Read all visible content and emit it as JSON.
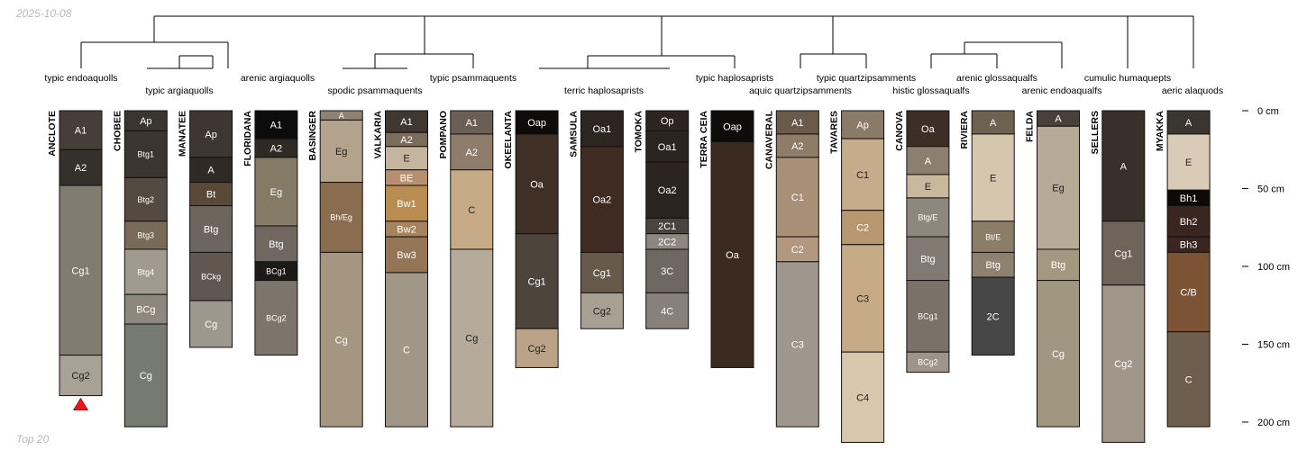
{
  "meta": {
    "date": "2025-10-08",
    "footer": "Top 20"
  },
  "depth_axis": {
    "unit": "cm",
    "ticks": [
      0,
      50,
      100,
      150,
      200
    ],
    "labels": [
      "0 cm",
      "50 cm",
      "100 cm",
      "150 cm",
      "200 cm"
    ]
  },
  "profiles": [
    {
      "name": "ANCLOTE",
      "horizons": [
        {
          "name": "A1",
          "top": 0,
          "bottom": 25,
          "color": "#463e37"
        },
        {
          "name": "A2",
          "top": 25,
          "bottom": 48,
          "color": "#34302b"
        },
        {
          "name": "Cg1",
          "top": 48,
          "bottom": 157,
          "color": "#807c70"
        },
        {
          "name": "Cg2",
          "top": 157,
          "bottom": 183,
          "color": "#a8a196"
        }
      ],
      "truncated": true
    },
    {
      "name": "CHOBEE",
      "horizons": [
        {
          "name": "Ap",
          "top": 0,
          "bottom": 13,
          "color": "#3b3530"
        },
        {
          "name": "Btg1",
          "top": 13,
          "bottom": 43,
          "color": "#3b3530"
        },
        {
          "name": "Btg2",
          "top": 43,
          "bottom": 71,
          "color": "#534a42"
        },
        {
          "name": "Btg3",
          "top": 71,
          "bottom": 89,
          "color": "#7a6a58"
        },
        {
          "name": "Btg4",
          "top": 89,
          "bottom": 118,
          "color": "#a19b8f"
        },
        {
          "name": "BCg",
          "top": 118,
          "bottom": 137,
          "color": "#8d877e"
        },
        {
          "name": "Cg",
          "top": 137,
          "bottom": 203,
          "color": "#777a6f"
        }
      ]
    },
    {
      "name": "MANATEE",
      "horizons": [
        {
          "name": "Ap",
          "top": 0,
          "bottom": 30,
          "color": "#3e3631"
        },
        {
          "name": "A",
          "top": 30,
          "bottom": 46,
          "color": "#2f2a26"
        },
        {
          "name": "Bt",
          "top": 46,
          "bottom": 61,
          "color": "#5a4838"
        },
        {
          "name": "Btg",
          "top": 61,
          "bottom": 91,
          "color": "#6c655d"
        },
        {
          "name": "BCkg",
          "top": 91,
          "bottom": 122,
          "color": "#605750"
        },
        {
          "name": "Cg",
          "top": 122,
          "bottom": 152,
          "color": "#9d988d"
        }
      ]
    },
    {
      "name": "FLORIDANA",
      "horizons": [
        {
          "name": "A1",
          "top": 0,
          "bottom": 18,
          "color": "#0d0c0c"
        },
        {
          "name": "A2",
          "top": 18,
          "bottom": 30,
          "color": "#302a26"
        },
        {
          "name": "Eg",
          "top": 30,
          "bottom": 74,
          "color": "#857a66"
        },
        {
          "name": "Btg",
          "top": 74,
          "bottom": 97,
          "color": "#6f6760"
        },
        {
          "name": "BCg1",
          "top": 97,
          "bottom": 109,
          "color": "#1b1a18"
        },
        {
          "name": "BCg2",
          "top": 109,
          "bottom": 157,
          "color": "#7d756c"
        }
      ]
    },
    {
      "name": "BASINGER",
      "horizons": [
        {
          "name": "A",
          "top": 0,
          "bottom": 6,
          "color": "#8e8373"
        },
        {
          "name": "Eg",
          "top": 6,
          "bottom": 46,
          "color": "#b3a38c"
        },
        {
          "name": "Bh/Eg",
          "top": 46,
          "bottom": 91,
          "color": "#8a6d4f"
        },
        {
          "name": "Cg",
          "top": 91,
          "bottom": 203,
          "color": "#a49680"
        }
      ]
    },
    {
      "name": "VALKARIA",
      "horizons": [
        {
          "name": "A1",
          "top": 0,
          "bottom": 14,
          "color": "#3f3731"
        },
        {
          "name": "A2",
          "top": 14,
          "bottom": 23,
          "color": "#7c6c5c"
        },
        {
          "name": "E",
          "top": 23,
          "bottom": 38,
          "color": "#c5b59e"
        },
        {
          "name": "BE",
          "top": 38,
          "bottom": 48,
          "color": "#b69070"
        },
        {
          "name": "Bw1",
          "top": 48,
          "bottom": 71,
          "color": "#b88c52"
        },
        {
          "name": "Bw2",
          "top": 71,
          "bottom": 81,
          "color": "#a5835e"
        },
        {
          "name": "Bw3",
          "top": 81,
          "bottom": 104,
          "color": "#947656"
        },
        {
          "name": "C",
          "top": 104,
          "bottom": 203,
          "color": "#a19788"
        }
      ]
    },
    {
      "name": "POMPANO",
      "horizons": [
        {
          "name": "A1",
          "top": 0,
          "bottom": 15,
          "color": "#6a5f54"
        },
        {
          "name": "A2",
          "top": 15,
          "bottom": 38,
          "color": "#8e7d6a"
        },
        {
          "name": "C",
          "top": 38,
          "bottom": 89,
          "color": "#c7ab86"
        },
        {
          "name": "Cg",
          "top": 89,
          "bottom": 203,
          "color": "#b6aa9b"
        }
      ]
    },
    {
      "name": "OKEELANTA",
      "horizons": [
        {
          "name": "Oap",
          "top": 0,
          "bottom": 15,
          "color": "#0e0c0b"
        },
        {
          "name": "Oa",
          "top": 15,
          "bottom": 79,
          "color": "#3f2f25"
        },
        {
          "name": "Cg1",
          "top": 79,
          "bottom": 140,
          "color": "#4d453b"
        },
        {
          "name": "Cg2",
          "top": 140,
          "bottom": 165,
          "color": "#baa386"
        }
      ]
    },
    {
      "name": "SAMSULA",
      "horizons": [
        {
          "name": "Oa1",
          "top": 0,
          "bottom": 23,
          "color": "#2d2520"
        },
        {
          "name": "Oa2",
          "top": 23,
          "bottom": 91,
          "color": "#3f2b22"
        },
        {
          "name": "Cg1",
          "top": 91,
          "bottom": 117,
          "color": "#675a4b"
        },
        {
          "name": "Cg2",
          "top": 117,
          "bottom": 140,
          "color": "#a7a093"
        }
      ]
    },
    {
      "name": "TOMOKA",
      "horizons": [
        {
          "name": "Op",
          "top": 0,
          "bottom": 13,
          "color": "#2b2420"
        },
        {
          "name": "Oa1",
          "top": 13,
          "bottom": 33,
          "color": "#2b2420"
        },
        {
          "name": "Oa2",
          "top": 33,
          "bottom": 69,
          "color": "#2b2420"
        },
        {
          "name": "2C1",
          "top": 69,
          "bottom": 79,
          "color": "#4a4440"
        },
        {
          "name": "2C2",
          "top": 79,
          "bottom": 89,
          "color": "#8d8780"
        },
        {
          "name": "3C",
          "top": 89,
          "bottom": 117,
          "color": "#6e6860"
        },
        {
          "name": "4C",
          "top": 117,
          "bottom": 140,
          "color": "#87817a"
        }
      ]
    },
    {
      "name": "TERRA CEIA",
      "horizons": [
        {
          "name": "Oap",
          "top": 0,
          "bottom": 20,
          "color": "#0e0c0b"
        },
        {
          "name": "Oa",
          "top": 20,
          "bottom": 165,
          "color": "#3a2a1f"
        }
      ]
    },
    {
      "name": "CANAVERAL",
      "horizons": [
        {
          "name": "A1",
          "top": 0,
          "bottom": 15,
          "color": "#6a5a49"
        },
        {
          "name": "A2",
          "top": 15,
          "bottom": 30,
          "color": "#8f7c68"
        },
        {
          "name": "C1",
          "top": 30,
          "bottom": 81,
          "color": "#a89078"
        },
        {
          "name": "C2",
          "top": 81,
          "bottom": 97,
          "color": "#b2987e"
        },
        {
          "name": "C3",
          "top": 97,
          "bottom": 203,
          "color": "#9e978d"
        }
      ]
    },
    {
      "name": "TAVARES",
      "horizons": [
        {
          "name": "Ap",
          "top": 0,
          "bottom": 18,
          "color": "#8a7a68"
        },
        {
          "name": "C1",
          "top": 18,
          "bottom": 64,
          "color": "#c6ac8a"
        },
        {
          "name": "C2",
          "top": 64,
          "bottom": 86,
          "color": "#b69770"
        },
        {
          "name": "C3",
          "top": 86,
          "bottom": 155,
          "color": "#c7ab86"
        },
        {
          "name": "C4",
          "top": 155,
          "bottom": 213,
          "color": "#d8c7ad"
        }
      ]
    },
    {
      "name": "CANOVA",
      "horizons": [
        {
          "name": "Oa",
          "top": 0,
          "bottom": 23,
          "color": "#3d2e26"
        },
        {
          "name": "A",
          "top": 23,
          "bottom": 41,
          "color": "#8c7f70"
        },
        {
          "name": "E",
          "top": 41,
          "bottom": 56,
          "color": "#c9b79e"
        },
        {
          "name": "Btg/E",
          "top": 56,
          "bottom": 81,
          "color": "#8e877e"
        },
        {
          "name": "Btg",
          "top": 81,
          "bottom": 109,
          "color": "#807a73"
        },
        {
          "name": "BCg1",
          "top": 109,
          "bottom": 155,
          "color": "#7a7168"
        },
        {
          "name": "BCg2",
          "top": 155,
          "bottom": 168,
          "color": "#9d958a"
        }
      ]
    },
    {
      "name": "RIVIERA",
      "horizons": [
        {
          "name": "A",
          "top": 0,
          "bottom": 15,
          "color": "#6d6150"
        },
        {
          "name": "E",
          "top": 15,
          "bottom": 71,
          "color": "#d6c6ae"
        },
        {
          "name": "Bt/E",
          "top": 71,
          "bottom": 91,
          "color": "#8c7d69"
        },
        {
          "name": "Btg",
          "top": 91,
          "bottom": 107,
          "color": "#8d8170"
        },
        {
          "name": "2C",
          "top": 107,
          "bottom": 157,
          "color": "#474747"
        }
      ]
    },
    {
      "name": "FELDA",
      "horizons": [
        {
          "name": "A",
          "top": 0,
          "bottom": 10,
          "color": "#4a403a"
        },
        {
          "name": "Eg",
          "top": 10,
          "bottom": 89,
          "color": "#b7aa96"
        },
        {
          "name": "Btg",
          "top": 89,
          "bottom": 109,
          "color": "#a49880"
        },
        {
          "name": "Cg",
          "top": 109,
          "bottom": 203,
          "color": "#a1967f"
        }
      ]
    },
    {
      "name": "SELLERS",
      "horizons": [
        {
          "name": "A",
          "top": 0,
          "bottom": 71,
          "color": "#393029"
        },
        {
          "name": "Cg1",
          "top": 71,
          "bottom": 112,
          "color": "#6e645a"
        },
        {
          "name": "Cg2",
          "top": 112,
          "bottom": 213,
          "color": "#a1968a"
        }
      ]
    },
    {
      "name": "MYAKKA",
      "horizons": [
        {
          "name": "A",
          "top": 0,
          "bottom": 15,
          "color": "#3b3530"
        },
        {
          "name": "E",
          "top": 15,
          "bottom": 51,
          "color": "#d9cbb5"
        },
        {
          "name": "Bh1",
          "top": 51,
          "bottom": 61,
          "color": "#0d0b0a"
        },
        {
          "name": "Bh2",
          "top": 61,
          "bottom": 81,
          "color": "#3a2520"
        },
        {
          "name": "Bh3",
          "top": 81,
          "bottom": 91,
          "color": "#3a2520"
        },
        {
          "name": "C/B",
          "top": 91,
          "bottom": 142,
          "color": "#7c5435"
        },
        {
          "name": "C",
          "top": 142,
          "bottom": 203,
          "color": "#6e5e4e"
        }
      ]
    }
  ],
  "taxonomy_labels": [
    "typic endoaquolls",
    "typic argiaquolls",
    "arenic argiaquolls",
    "spodic psammaquents",
    "typic psammaquents",
    "terric haplosaprists",
    "typic haplosaprists",
    "aquic quartzipsamments",
    "typic quartzipsamments",
    "histic glossaqualfs",
    "arenic glossaqualfs",
    "arenic endoaqualfs",
    "cumulic humaquepts",
    "aeric alaquods"
  ],
  "colors": {
    "outline": "#111111",
    "truncation_marker": "#e8141e",
    "tree": "#000000",
    "faint_text": "#b8b8b8"
  }
}
